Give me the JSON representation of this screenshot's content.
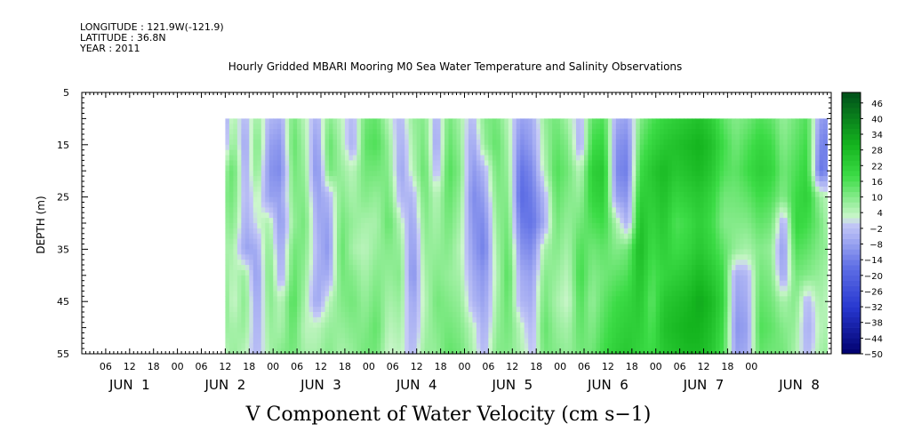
{
  "header": {
    "longitude": "LONGITUDE : 121.9W(-121.9)",
    "latitude": "LATITUDE : 36.8N",
    "year": "YEAR : 2011"
  },
  "chart_data": {
    "type": "heatmap",
    "title": "Hourly Gridded MBARI Mooring M0 Sea Water Temperature and Salinity Observations",
    "variable_label": "V Component of Water Velocity (cm s−1)",
    "ylabel": "DEPTH (m)",
    "ylim": [
      55,
      5
    ],
    "y_ticks": [
      5,
      15,
      25,
      35,
      45,
      55
    ],
    "x_range_hours": [
      -24,
      164
    ],
    "data_start_hour": 12,
    "data_depth_range": [
      10,
      55
    ],
    "x_tick_labels": [
      {
        "hour": -18,
        "label": "06"
      },
      {
        "hour": -12,
        "label": "12"
      },
      {
        "hour": -6,
        "label": "18"
      },
      {
        "hour": 0,
        "label": "00"
      },
      {
        "hour": 6,
        "label": "06"
      },
      {
        "hour": 12,
        "label": "12"
      },
      {
        "hour": 18,
        "label": "18"
      },
      {
        "hour": 24,
        "label": "00"
      },
      {
        "hour": 30,
        "label": "06"
      },
      {
        "hour": 36,
        "label": "12"
      },
      {
        "hour": 42,
        "label": "18"
      },
      {
        "hour": 48,
        "label": "00"
      },
      {
        "hour": 54,
        "label": "06"
      },
      {
        "hour": 60,
        "label": "12"
      },
      {
        "hour": 66,
        "label": "18"
      },
      {
        "hour": 72,
        "label": "00"
      },
      {
        "hour": 78,
        "label": "06"
      },
      {
        "hour": 84,
        "label": "12"
      },
      {
        "hour": 90,
        "label": "18"
      },
      {
        "hour": 96,
        "label": "00"
      },
      {
        "hour": 102,
        "label": "06"
      },
      {
        "hour": 108,
        "label": "12"
      },
      {
        "hour": 114,
        "label": "18"
      },
      {
        "hour": 120,
        "label": "00"
      },
      {
        "hour": 126,
        "label": "06"
      },
      {
        "hour": 132,
        "label": "12"
      },
      {
        "hour": 138,
        "label": "18"
      },
      {
        "hour": 144,
        "label": "00"
      }
    ],
    "day_labels": [
      {
        "hour": -12,
        "label": "JUN  1"
      },
      {
        "hour": 12,
        "label": "JUN  2"
      },
      {
        "hour": 36,
        "label": "JUN  3"
      },
      {
        "hour": 60,
        "label": "JUN  4"
      },
      {
        "hour": 84,
        "label": "JUN  5"
      },
      {
        "hour": 108,
        "label": "JUN  6"
      },
      {
        "hour": 132,
        "label": "JUN  7"
      },
      {
        "hour": 156,
        "label": "JUN  8"
      }
    ],
    "colorbar": {
      "range": [
        -50,
        50
      ],
      "step": 2,
      "labels": [
        "46",
        "40",
        "34",
        "28",
        "22",
        "16",
        "10",
        "4",
        "−2",
        "−8",
        "−14",
        "−20",
        "−26",
        "−32",
        "−38",
        "−44",
        "−50"
      ],
      "color_stops": [
        {
          "value": -50,
          "color": "#00006e"
        },
        {
          "value": -32,
          "color": "#2838d0"
        },
        {
          "value": -16,
          "color": "#6272e6"
        },
        {
          "value": -6,
          "color": "#a4acf2"
        },
        {
          "value": 0,
          "color": "#c6caf6"
        },
        {
          "value": 2,
          "color": "#cdf6cd"
        },
        {
          "value": 8,
          "color": "#96ee9a"
        },
        {
          "value": 18,
          "color": "#3cdc46"
        },
        {
          "value": 30,
          "color": "#14b41e"
        },
        {
          "value": 50,
          "color": "#00501a"
        }
      ]
    },
    "columns": [
      {
        "hour": 12,
        "values": [
          -6,
          -4,
          8,
          10,
          8,
          6,
          8,
          10,
          8,
          4
        ]
      },
      {
        "hour": 14,
        "values": [
          6,
          10,
          14,
          12,
          10,
          6,
          4,
          2,
          6,
          8
        ]
      },
      {
        "hour": 17,
        "values": [
          -4,
          -8,
          -6,
          -4,
          -6,
          -8,
          8,
          10,
          8,
          4
        ]
      },
      {
        "hour": 20,
        "values": [
          8,
          12,
          10,
          4,
          2,
          -6,
          -10,
          -8,
          -6,
          -4
        ]
      },
      {
        "hour": 23,
        "values": [
          -4,
          -8,
          -10,
          -8,
          6,
          10,
          12,
          10,
          8,
          6
        ]
      },
      {
        "hour": 26,
        "values": [
          -6,
          -10,
          -12,
          -8,
          -10,
          -8,
          -6,
          4,
          6,
          10
        ]
      },
      {
        "hour": 29,
        "values": [
          12,
          14,
          12,
          10,
          8,
          12,
          14,
          16,
          14,
          12
        ]
      },
      {
        "hour": 32,
        "values": [
          4,
          6,
          8,
          10,
          12,
          10,
          8,
          6,
          4,
          6
        ]
      },
      {
        "hour": 35,
        "values": [
          -6,
          -10,
          -12,
          -8,
          -6,
          -4,
          -6,
          -8,
          4,
          6
        ]
      },
      {
        "hour": 38,
        "values": [
          10,
          14,
          12,
          -4,
          -8,
          -10,
          -6,
          4,
          8,
          10
        ]
      },
      {
        "hour": 41,
        "values": [
          4,
          6,
          8,
          10,
          12,
          14,
          12,
          10,
          8,
          6
        ]
      },
      {
        "hour": 44,
        "values": [
          -4,
          -6,
          4,
          6,
          8,
          6,
          10,
          12,
          10,
          8
        ]
      },
      {
        "hour": 47,
        "values": [
          12,
          14,
          12,
          10,
          6,
          4,
          6,
          8,
          10,
          12
        ]
      },
      {
        "hour": 50,
        "values": [
          14,
          16,
          12,
          8,
          6,
          8,
          10,
          12,
          14,
          12
        ]
      },
      {
        "hour": 53,
        "values": [
          4,
          8,
          10,
          12,
          14,
          10,
          8,
          6,
          4,
          2
        ]
      },
      {
        "hour": 56,
        "values": [
          -4,
          -6,
          -8,
          -4,
          4,
          8,
          10,
          8,
          6,
          4
        ]
      },
      {
        "hour": 59,
        "values": [
          8,
          6,
          4,
          -4,
          -8,
          -10,
          -12,
          -8,
          -6,
          -4
        ]
      },
      {
        "hour": 62,
        "values": [
          10,
          12,
          14,
          12,
          10,
          8,
          6,
          4,
          6,
          8
        ]
      },
      {
        "hour": 65,
        "values": [
          -6,
          -8,
          -4,
          4,
          6,
          8,
          10,
          12,
          10,
          8
        ]
      },
      {
        "hour": 68,
        "values": [
          12,
          14,
          16,
          14,
          12,
          10,
          8,
          10,
          12,
          14
        ]
      },
      {
        "hour": 71,
        "values": [
          6,
          8,
          10,
          8,
          6,
          4,
          6,
          8,
          10,
          12
        ]
      },
      {
        "hour": 74,
        "values": [
          -4,
          -8,
          -10,
          -12,
          -10,
          -8,
          -6,
          -4,
          4,
          6
        ]
      },
      {
        "hour": 77,
        "values": [
          10,
          8,
          -4,
          -8,
          -12,
          -14,
          -10,
          -8,
          -6,
          -4
        ]
      },
      {
        "hour": 80,
        "values": [
          12,
          14,
          12,
          10,
          8,
          6,
          4,
          6,
          8,
          10
        ]
      },
      {
        "hour": 83,
        "values": [
          4,
          6,
          8,
          10,
          12,
          14,
          16,
          14,
          12,
          10
        ]
      },
      {
        "hour": 86,
        "values": [
          -8,
          -12,
          -16,
          -18,
          -14,
          -10,
          -6,
          -4,
          4,
          6
        ]
      },
      {
        "hour": 89,
        "values": [
          -6,
          -8,
          -12,
          -14,
          -16,
          -12,
          -8,
          -6,
          -4,
          -2
        ]
      },
      {
        "hour": 92,
        "values": [
          8,
          6,
          4,
          -4,
          -6,
          6,
          10,
          12,
          14,
          12
        ]
      },
      {
        "hour": 95,
        "values": [
          12,
          14,
          16,
          14,
          12,
          10,
          8,
          6,
          8,
          10
        ]
      },
      {
        "hour": 98,
        "values": [
          6,
          10,
          12,
          10,
          8,
          6,
          4,
          2,
          6,
          8
        ]
      },
      {
        "hour": 101,
        "values": [
          -4,
          -6,
          4,
          8,
          12,
          16,
          18,
          16,
          14,
          12
        ]
      },
      {
        "hour": 104,
        "values": [
          14,
          18,
          22,
          20,
          16,
          12,
          10,
          8,
          10,
          12
        ]
      },
      {
        "hour": 107,
        "values": [
          16,
          20,
          24,
          22,
          18,
          14,
          12,
          14,
          16,
          18
        ]
      },
      {
        "hour": 110,
        "values": [
          -6,
          -10,
          -12,
          -8,
          6,
          10,
          14,
          18,
          20,
          22
        ]
      },
      {
        "hour": 113,
        "values": [
          -8,
          -12,
          -14,
          -10,
          -6,
          12,
          16,
          20,
          22,
          24
        ]
      },
      {
        "hour": 116,
        "values": [
          10,
          14,
          18,
          22,
          26,
          28,
          26,
          24,
          22,
          20
        ]
      },
      {
        "hour": 119,
        "values": [
          16,
          20,
          24,
          22,
          20,
          18,
          16,
          14,
          16,
          18
        ]
      },
      {
        "hour": 122,
        "values": [
          20,
          24,
          28,
          26,
          24,
          22,
          20,
          24,
          26,
          24
        ]
      },
      {
        "hour": 125,
        "values": [
          22,
          26,
          24,
          20,
          16,
          18,
          22,
          26,
          28,
          26
        ]
      },
      {
        "hour": 128,
        "values": [
          24,
          28,
          26,
          22,
          18,
          20,
          24,
          28,
          30,
          28
        ]
      },
      {
        "hour": 131,
        "values": [
          26,
          30,
          28,
          24,
          22,
          24,
          28,
          32,
          30,
          28
        ]
      },
      {
        "hour": 134,
        "values": [
          22,
          26,
          24,
          20,
          18,
          20,
          24,
          28,
          26,
          24
        ]
      },
      {
        "hour": 137,
        "values": [
          14,
          18,
          16,
          12,
          10,
          14,
          18,
          20,
          18,
          16
        ]
      },
      {
        "hour": 140,
        "values": [
          10,
          12,
          14,
          12,
          10,
          8,
          -6,
          -8,
          -10,
          -8
        ]
      },
      {
        "hour": 143,
        "values": [
          12,
          16,
          18,
          14,
          10,
          6,
          -4,
          -6,
          -8,
          -6
        ]
      },
      {
        "hour": 146,
        "values": [
          16,
          20,
          22,
          18,
          14,
          10,
          12,
          14,
          16,
          14
        ]
      },
      {
        "hour": 149,
        "values": [
          14,
          18,
          20,
          16,
          12,
          8,
          10,
          12,
          14,
          12
        ]
      },
      {
        "hour": 152,
        "values": [
          8,
          10,
          12,
          10,
          -6,
          -10,
          -8,
          6,
          10,
          12
        ]
      },
      {
        "hour": 155,
        "values": [
          12,
          14,
          16,
          18,
          20,
          16,
          12,
          10,
          8,
          6
        ]
      },
      {
        "hour": 158,
        "values": [
          16,
          18,
          20,
          22,
          18,
          14,
          10,
          -4,
          -6,
          -4
        ]
      },
      {
        "hour": 161,
        "values": [
          -8,
          -12,
          -16,
          8,
          12,
          10,
          8,
          6,
          4,
          6
        ]
      },
      {
        "hour": 163,
        "values": [
          -10,
          -14,
          -12,
          4,
          6,
          8,
          6,
          4,
          6,
          8
        ]
      }
    ]
  }
}
